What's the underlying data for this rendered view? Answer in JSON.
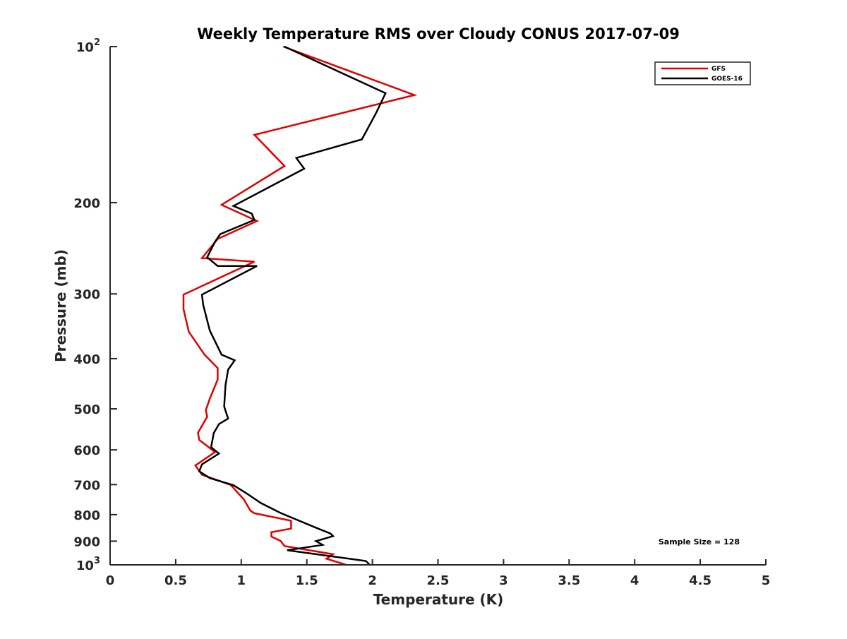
{
  "chart_data": {
    "type": "line",
    "title": "Weekly Temperature RMS over Cloudy CONUS 2017-07-09",
    "xlabel": "Temperature (K)",
    "ylabel": "Pressure (mb)",
    "xlim": [
      0,
      5
    ],
    "ylim": [
      100,
      1000
    ],
    "y_scale": "log",
    "y_reversed": true,
    "grid": false,
    "legend_placement": "top-right",
    "x_ticks": [
      0,
      0.5,
      1,
      1.5,
      2,
      2.5,
      3,
      3.5,
      4,
      4.5,
      5
    ],
    "x_tick_labels": [
      "0",
      "0.5",
      "1",
      "1.5",
      "2",
      "2.5",
      "3",
      "3.5",
      "4",
      "4.5",
      "5"
    ],
    "y_ticks": [
      100,
      200,
      300,
      400,
      500,
      600,
      700,
      800,
      900,
      1000
    ],
    "y_tick_labels": [
      {
        "base": "10",
        "exp": "2"
      },
      {
        "base": "200",
        "exp": ""
      },
      {
        "base": "300",
        "exp": ""
      },
      {
        "base": "400",
        "exp": ""
      },
      {
        "base": "500",
        "exp": ""
      },
      {
        "base": "600",
        "exp": ""
      },
      {
        "base": "700",
        "exp": ""
      },
      {
        "base": "800",
        "exp": ""
      },
      {
        "base": "900",
        "exp": ""
      },
      {
        "base": "10",
        "exp": "3"
      }
    ],
    "series": [
      {
        "name": "GFS",
        "color": "#e00000",
        "x": [
          1.32,
          2.32,
          1.1,
          1.33,
          0.85,
          1.12,
          0.82,
          0.7,
          1.1,
          0.56,
          0.56,
          0.6,
          0.72,
          0.82,
          0.82,
          0.76,
          0.73,
          0.74,
          0.67,
          0.68,
          0.8,
          0.65,
          0.7,
          0.92,
          1.02,
          1.07,
          1.1,
          1.38,
          1.38,
          1.23,
          1.23,
          1.3,
          1.33,
          1.7,
          1.65,
          1.8
        ],
        "y": [
          100,
          124,
          148,
          170,
          202,
          217,
          235,
          256,
          260,
          301,
          321,
          355,
          393,
          417,
          439,
          478,
          503,
          518,
          556,
          574,
          606,
          643,
          670,
          701,
          748,
          786,
          795,
          822,
          851,
          865,
          882,
          899,
          920,
          954,
          973,
          1000
        ]
      },
      {
        "name": "GOES-16",
        "color": "#000000",
        "x": [
          1.33,
          2.1,
          2.03,
          1.92,
          1.42,
          1.48,
          0.94,
          1.08,
          1.1,
          0.84,
          0.8,
          0.74,
          0.82,
          1.12,
          0.7,
          0.71,
          0.76,
          0.85,
          0.95,
          0.9,
          0.88,
          0.87,
          0.9,
          0.83,
          0.79,
          0.77,
          0.83,
          0.7,
          0.68,
          0.76,
          0.94,
          1.03,
          1.15,
          1.3,
          1.58,
          1.68,
          1.7,
          1.57,
          1.62,
          1.35,
          1.95,
          1.98
        ],
        "y": [
          100,
          123,
          134,
          151,
          164,
          172,
          203,
          210,
          216,
          230,
          238,
          255,
          265,
          265,
          301,
          315,
          353,
          393,
          403,
          420,
          450,
          495,
          522,
          535,
          557,
          593,
          610,
          640,
          660,
          680,
          702,
          725,
          760,
          794,
          850,
          870,
          880,
          900,
          915,
          937,
          983,
          1000
        ]
      }
    ],
    "annotations": [
      "Sample Size = 128"
    ]
  }
}
